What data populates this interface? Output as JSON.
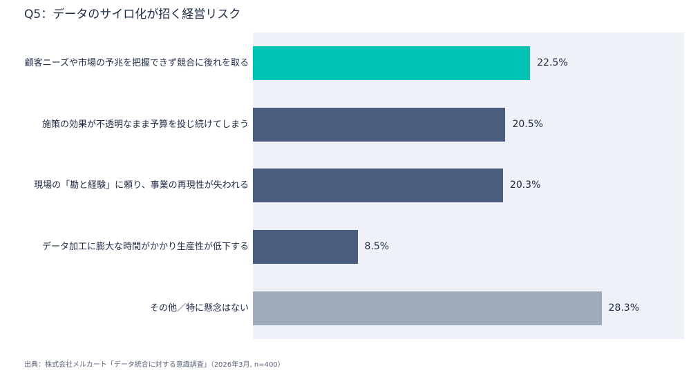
{
  "title": "Q5：データのサイロ化が招く経営リスク",
  "source": "出典：株式会社メルカート「データ統合に対する意識調査」（2026年3月, n=400）",
  "chart_data": {
    "type": "bar",
    "orientation": "horizontal",
    "title": "Q5：データのサイロ化が招く経営リスク",
    "categories": [
      "顧客ニーズや市場の予兆を把握できず競合に後れを取る",
      "施策の効果が不透明なまま予算を投じ続けてしまう",
      "現場の「勘と経験」に頼り、事業の再現性が失われる",
      "データ加工に膨大な時間がかかり生産性が低下する",
      "その他／特に懸念はない"
    ],
    "values": [
      22.5,
      20.5,
      20.3,
      8.5,
      28.3
    ],
    "value_labels": [
      "22.5%",
      "20.5%",
      "20.3%",
      "8.5%",
      "28.3%"
    ],
    "bar_colors": [
      "#00c4b3",
      "#4a5d7e",
      "#4a5d7e",
      "#4a5d7e",
      "#9fabba"
    ],
    "xlim": [
      0,
      35
    ],
    "grid": false,
    "legend": "none"
  }
}
